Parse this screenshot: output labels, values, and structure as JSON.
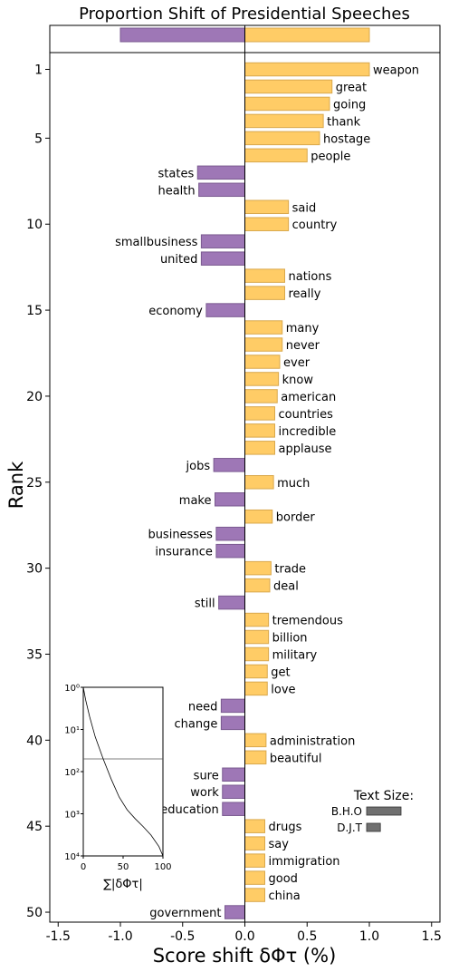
{
  "chart_data": [
    {
      "type": "bar",
      "orientation": "horizontal",
      "title": "Proportion Shift of Presidential Speeches",
      "xlabel": "Score shift δΦτ (%)",
      "ylabel": "Rank",
      "xlim": [
        -1.55,
        1.55
      ],
      "xticks": [
        -1.5,
        -1.0,
        -0.5,
        0.0,
        0.5,
        1.0,
        1.5
      ],
      "xtick_labels": [
        "-1.5",
        "-1.0",
        "-0.5",
        "0.0",
        "0.5",
        "1.0",
        "1.5"
      ],
      "yticks": [
        1,
        5,
        10,
        15,
        20,
        25,
        30,
        35,
        40,
        45,
        50
      ],
      "colors": {
        "positive": "#ffcc66",
        "positive_edge": "#d9a84c",
        "negative": "#9e77b6",
        "negative_edge": "#7a5a90"
      },
      "summary_bar": {
        "negative": -1.0,
        "positive": 1.0
      },
      "words": [
        {
          "rank": 1,
          "word": "weapon",
          "value": 1.0
        },
        {
          "rank": 2,
          "word": "great",
          "value": 0.7
        },
        {
          "rank": 3,
          "word": "going",
          "value": 0.68
        },
        {
          "rank": 4,
          "word": "thank",
          "value": 0.63
        },
        {
          "rank": 5,
          "word": "hostage",
          "value": 0.6
        },
        {
          "rank": 6,
          "word": "people",
          "value": 0.5
        },
        {
          "rank": 7,
          "word": "states",
          "value": -0.38
        },
        {
          "rank": 8,
          "word": "health",
          "value": -0.37
        },
        {
          "rank": 9,
          "word": "said",
          "value": 0.35
        },
        {
          "rank": 10,
          "word": "country",
          "value": 0.35
        },
        {
          "rank": 11,
          "word": "smallbusiness",
          "value": -0.35
        },
        {
          "rank": 12,
          "word": "united",
          "value": -0.35
        },
        {
          "rank": 13,
          "word": "nations",
          "value": 0.32
        },
        {
          "rank": 14,
          "word": "really",
          "value": 0.32
        },
        {
          "rank": 15,
          "word": "economy",
          "value": -0.31
        },
        {
          "rank": 16,
          "word": "many",
          "value": 0.3
        },
        {
          "rank": 17,
          "word": "never",
          "value": 0.3
        },
        {
          "rank": 18,
          "word": "ever",
          "value": 0.28
        },
        {
          "rank": 19,
          "word": "know",
          "value": 0.27
        },
        {
          "rank": 20,
          "word": "american",
          "value": 0.26
        },
        {
          "rank": 21,
          "word": "countries",
          "value": 0.24
        },
        {
          "rank": 22,
          "word": "incredible",
          "value": 0.24
        },
        {
          "rank": 23,
          "word": "applause",
          "value": 0.24
        },
        {
          "rank": 24,
          "word": "jobs",
          "value": -0.25
        },
        {
          "rank": 25,
          "word": "much",
          "value": 0.23
        },
        {
          "rank": 26,
          "word": "make",
          "value": -0.24
        },
        {
          "rank": 27,
          "word": "border",
          "value": 0.22
        },
        {
          "rank": 28,
          "word": "businesses",
          "value": -0.23
        },
        {
          "rank": 29,
          "word": "insurance",
          "value": -0.23
        },
        {
          "rank": 30,
          "word": "trade",
          "value": 0.21
        },
        {
          "rank": 31,
          "word": "deal",
          "value": 0.2
        },
        {
          "rank": 32,
          "word": "still",
          "value": -0.21
        },
        {
          "rank": 33,
          "word": "tremendous",
          "value": 0.19
        },
        {
          "rank": 34,
          "word": "billion",
          "value": 0.19
        },
        {
          "rank": 35,
          "word": "military",
          "value": 0.19
        },
        {
          "rank": 36,
          "word": "get",
          "value": 0.18
        },
        {
          "rank": 37,
          "word": "love",
          "value": 0.18
        },
        {
          "rank": 38,
          "word": "need",
          "value": -0.19
        },
        {
          "rank": 39,
          "word": "change",
          "value": -0.19
        },
        {
          "rank": 40,
          "word": "administration",
          "value": 0.17
        },
        {
          "rank": 41,
          "word": "beautiful",
          "value": 0.17
        },
        {
          "rank": 42,
          "word": "sure",
          "value": -0.18
        },
        {
          "rank": 43,
          "word": "work",
          "value": -0.18
        },
        {
          "rank": 44,
          "word": "education",
          "value": -0.18
        },
        {
          "rank": 45,
          "word": "drugs",
          "value": 0.16
        },
        {
          "rank": 46,
          "word": "say",
          "value": 0.16
        },
        {
          "rank": 47,
          "word": "immigration",
          "value": 0.16
        },
        {
          "rank": 48,
          "word": "good",
          "value": 0.16
        },
        {
          "rank": 49,
          "word": "china",
          "value": 0.16
        },
        {
          "rank": 50,
          "word": "government",
          "value": -0.16
        }
      ],
      "text_size": {
        "title": "Text Size:",
        "entries": [
          {
            "label": "B.H.O",
            "value": 1.0
          },
          {
            "label": "D.J.T",
            "value": 0.4
          }
        ]
      }
    },
    {
      "type": "line",
      "xlabel": "∑|δΦτ|",
      "xlim": [
        0,
        100
      ],
      "xticks": [
        0,
        50,
        100
      ],
      "ylim": [
        1,
        10000
      ],
      "yscale": "log",
      "yinverted": true,
      "ytick_labels": [
        "10⁰",
        "10¹",
        "10²",
        "10³",
        "10⁴"
      ],
      "reference_line_y": 50,
      "x": [
        0,
        3,
        8,
        15,
        25,
        35,
        45,
        55,
        65,
        75,
        85,
        95,
        100
      ],
      "y": [
        1,
        2,
        5,
        15,
        50,
        150,
        400,
        800,
        1300,
        2000,
        3200,
        6000,
        10000
      ]
    }
  ]
}
